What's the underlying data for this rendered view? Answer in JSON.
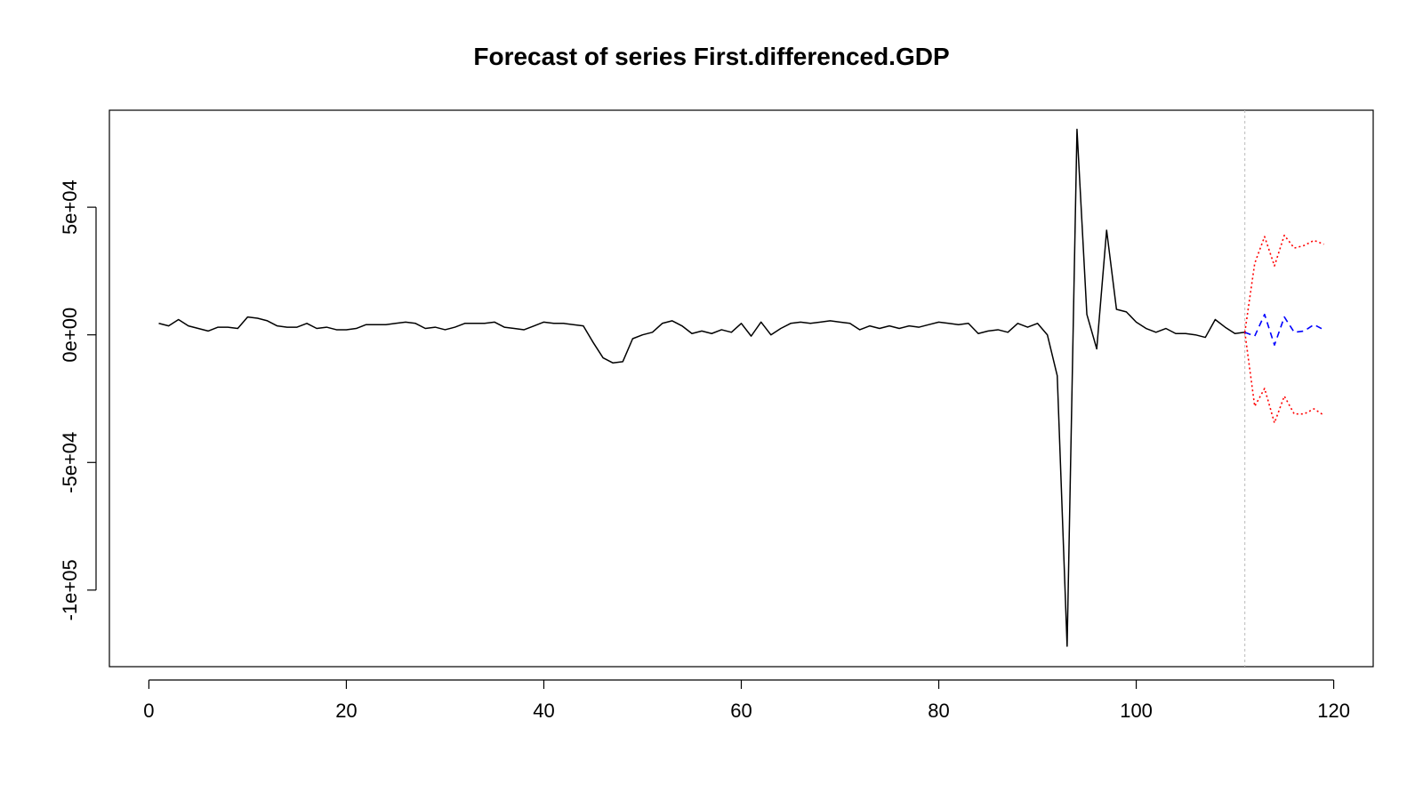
{
  "chart_data": {
    "type": "line",
    "title": "Forecast of series First.differenced.GDP",
    "xlabel": "",
    "ylabel": "",
    "xlim": [
      -4,
      124
    ],
    "ylim": [
      -130000,
      88000
    ],
    "x_ticks": [
      0,
      20,
      40,
      60,
      80,
      100,
      120
    ],
    "x_tick_labels": [
      "0",
      "20",
      "40",
      "60",
      "80",
      "100",
      "120"
    ],
    "y_ticks": [
      -100000,
      -50000,
      0,
      50000
    ],
    "y_tick_labels": [
      "-1e+05",
      "-5e+04",
      "0e+00",
      "5e+04"
    ],
    "grid": false,
    "legend": "none",
    "forecast_origin": 111,
    "colors": {
      "actual": "#000000",
      "forecast": "#0000ff",
      "upper": "#ff0000",
      "lower": "#ff0000",
      "origin_line": "#bbbbbb"
    },
    "series": [
      {
        "key": "actual",
        "x": [
          1,
          2,
          3,
          4,
          5,
          6,
          7,
          8,
          9,
          10,
          11,
          12,
          13,
          14,
          15,
          16,
          17,
          18,
          19,
          20,
          21,
          22,
          23,
          24,
          25,
          26,
          27,
          28,
          29,
          30,
          31,
          32,
          33,
          34,
          35,
          36,
          37,
          38,
          39,
          40,
          41,
          42,
          43,
          44,
          45,
          46,
          47,
          48,
          49,
          50,
          51,
          52,
          53,
          54,
          55,
          56,
          57,
          58,
          59,
          60,
          61,
          62,
          63,
          64,
          65,
          66,
          67,
          68,
          69,
          70,
          71,
          72,
          73,
          74,
          75,
          76,
          77,
          78,
          79,
          80,
          81,
          82,
          83,
          84,
          85,
          86,
          87,
          88,
          89,
          90,
          91,
          92,
          93,
          94,
          95,
          96,
          97,
          98,
          99,
          100,
          101,
          102,
          103,
          104,
          105,
          106,
          107,
          108,
          109,
          110,
          111
        ],
        "values": [
          4500,
          3500,
          6000,
          3500,
          2500,
          1500,
          3000,
          3000,
          2500,
          7000,
          6500,
          5500,
          3500,
          3000,
          3000,
          4500,
          2500,
          3000,
          2000,
          2000,
          2500,
          4000,
          4000,
          4000,
          4500,
          5000,
          4500,
          2500,
          3000,
          2000,
          3000,
          4500,
          4500,
          4500,
          5000,
          3000,
          2500,
          2000,
          3500,
          5000,
          4500,
          4500,
          4000,
          3500,
          -3000,
          -9000,
          -11000,
          -10500,
          -1500,
          0,
          1000,
          4500,
          5500,
          3500,
          500,
          1500,
          500,
          2000,
          1000,
          4500,
          -500,
          5000,
          0,
          2500,
          4500,
          5000,
          4500,
          5000,
          5500,
          5000,
          4500,
          2000,
          3500,
          2500,
          3500,
          2500,
          3500,
          3000,
          4000,
          5000,
          4500,
          4000,
          4500,
          500,
          1500,
          2000,
          1000,
          4500,
          3000,
          4500,
          0,
          -16000,
          -122000,
          80500,
          8000,
          -5500,
          41000,
          10000,
          9000,
          5000,
          2500,
          1000,
          2500,
          500,
          500,
          0,
          -1000,
          6000,
          3000,
          500,
          1000
        ]
      },
      {
        "key": "forecast",
        "x": [
          111,
          112,
          113,
          114,
          115,
          116,
          117,
          118,
          119
        ],
        "values": [
          1000,
          -500,
          8000,
          -4000,
          7000,
          1000,
          1500,
          4000,
          2000
        ]
      },
      {
        "key": "upper",
        "x": [
          111,
          112,
          113,
          114,
          115,
          116,
          117,
          118,
          119
        ],
        "values": [
          1000,
          28000,
          38500,
          27000,
          39000,
          34000,
          35000,
          37000,
          35500
        ]
      },
      {
        "key": "lower",
        "x": [
          111,
          112,
          113,
          114,
          115,
          116,
          117,
          118,
          119
        ],
        "values": [
          1000,
          -28000,
          -21000,
          -34500,
          -24000,
          -31000,
          -31000,
          -29000,
          -31500
        ]
      }
    ]
  }
}
